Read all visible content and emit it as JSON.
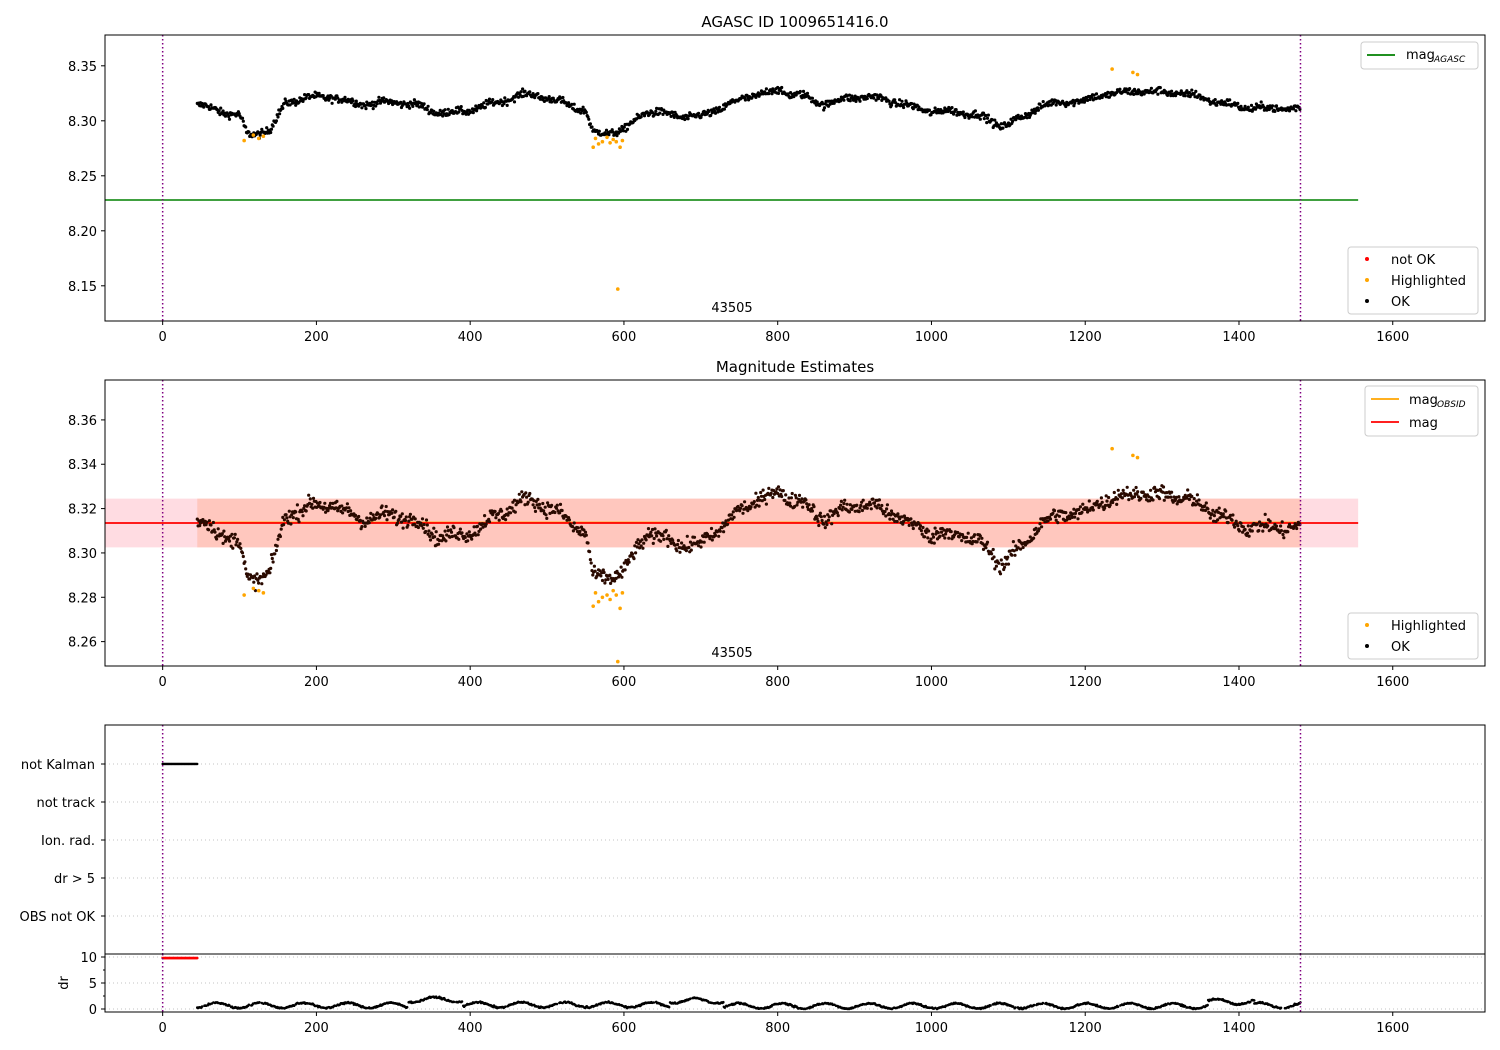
{
  "chart_data": [
    {
      "type": "scatter",
      "title": "AGASC ID 1009651416.0",
      "xlabel": "",
      "ylabel": "",
      "xlim": [
        -75,
        1720
      ],
      "ylim": [
        8.118,
        8.378
      ],
      "xticks": [
        0,
        200,
        400,
        600,
        800,
        1000,
        1200,
        1400,
        1600
      ],
      "yticks": [
        8.15,
        8.2,
        8.25,
        8.3,
        8.35
      ],
      "ytick_labels": [
        "8.15",
        "8.20",
        "8.25",
        "8.30",
        "8.35"
      ],
      "grid": false,
      "vlines": [
        0,
        1480
      ],
      "annotation": "43505",
      "hlines": [
        {
          "name": "mag_AGASC",
          "value": 8.228,
          "xmin": -75,
          "xmax": 1555,
          "color": "#008000"
        }
      ],
      "legend_upper": {
        "position": "upper right",
        "entries": [
          {
            "label_main": "mag",
            "label_sub": "AGASC",
            "color": "#008000",
            "marker": "line"
          }
        ]
      },
      "legend_lower": {
        "position": "lower right",
        "entries": [
          {
            "label": "not OK",
            "color": "#ff0000",
            "marker": "dot"
          },
          {
            "label": "Highlighted",
            "color": "#ffa500",
            "marker": "dot"
          },
          {
            "label": "OK",
            "color": "#000000",
            "marker": "dot"
          }
        ]
      },
      "series": [
        {
          "name": "OK",
          "color": "#000000",
          "kind": "band",
          "x_range": [
            45,
            1480
          ],
          "profile": [
            [
              45,
              8.312
            ],
            [
              100,
              8.307
            ],
            [
              110,
              8.29
            ],
            [
              140,
              8.292
            ],
            [
              160,
              8.315
            ],
            [
              220,
              8.322
            ],
            [
              260,
              8.318
            ],
            [
              300,
              8.316
            ],
            [
              360,
              8.307
            ],
            [
              420,
              8.315
            ],
            [
              480,
              8.322
            ],
            [
              520,
              8.318
            ],
            [
              550,
              8.312
            ],
            [
              560,
              8.29
            ],
            [
              600,
              8.289
            ],
            [
              630,
              8.307
            ],
            [
              700,
              8.306
            ],
            [
              740,
              8.314
            ],
            [
              800,
              8.328
            ],
            [
              830,
              8.326
            ],
            [
              860,
              8.316
            ],
            [
              920,
              8.32
            ],
            [
              960,
              8.318
            ],
            [
              1000,
              8.31
            ],
            [
              1060,
              8.303
            ],
            [
              1090,
              8.296
            ],
            [
              1120,
              8.306
            ],
            [
              1140,
              8.315
            ],
            [
              1200,
              8.316
            ],
            [
              1230,
              8.325
            ],
            [
              1270,
              8.33
            ],
            [
              1300,
              8.326
            ],
            [
              1360,
              8.318
            ],
            [
              1420,
              8.314
            ],
            [
              1480,
              8.308
            ]
          ],
          "spread": 0.0048
        },
        {
          "name": "Highlighted",
          "color": "#ffa500",
          "points": [
            [
              106,
              8.282
            ],
            [
              118,
              8.287
            ],
            [
              125,
              8.284
            ],
            [
              131,
              8.286
            ],
            [
              560,
              8.276
            ],
            [
              563,
              8.284
            ],
            [
              567,
              8.279
            ],
            [
              572,
              8.281
            ],
            [
              578,
              8.285
            ],
            [
              582,
              8.28
            ],
            [
              586,
              8.283
            ],
            [
              590,
              8.281
            ],
            [
              595,
              8.276
            ],
            [
              598,
              8.282
            ],
            [
              592,
              8.147
            ],
            [
              1235,
              8.347
            ],
            [
              1262,
              8.344
            ],
            [
              1268,
              8.342
            ]
          ]
        }
      ]
    },
    {
      "type": "scatter",
      "title": "Magnitude Estimates",
      "xlabel": "",
      "ylabel": "",
      "xlim": [
        -75,
        1720
      ],
      "ylim": [
        8.249,
        8.378
      ],
      "xticks": [
        0,
        200,
        400,
        600,
        800,
        1000,
        1200,
        1400,
        1600
      ],
      "yticks": [
        8.26,
        8.28,
        8.3,
        8.32,
        8.34,
        8.36
      ],
      "ytick_labels": [
        "8.26",
        "8.28",
        "8.30",
        "8.32",
        "8.34",
        "8.36"
      ],
      "grid": false,
      "vlines": [
        0,
        1480
      ],
      "annotation": "43505",
      "bands": [
        {
          "ymin": 8.3025,
          "ymax": 8.3245,
          "xmin": -75,
          "xmax": 1555,
          "color": "#ffc0cb",
          "opacity": 0.55
        },
        {
          "ymin": 8.3025,
          "ymax": 8.3245,
          "xmin": 45,
          "xmax": 1480,
          "color": "#ffa07a",
          "opacity": 0.35
        }
      ],
      "hlines": [
        {
          "name": "mag_OBSID",
          "value": 8.3137,
          "xmin": 45,
          "xmax": 1480,
          "color": "#ffa500"
        },
        {
          "name": "mag",
          "value": 8.3135,
          "xmin": -75,
          "xmax": 1555,
          "color": "#ff0000"
        }
      ],
      "legend_upper": {
        "position": "upper right",
        "entries": [
          {
            "label_main": "mag",
            "label_sub": "OBSID",
            "color": "#ffa500",
            "marker": "line"
          },
          {
            "label_main": "mag",
            "label_sub": "",
            "color": "#ff0000",
            "marker": "line"
          }
        ]
      },
      "legend_lower": {
        "position": "lower right",
        "entries": [
          {
            "label": "Highlighted",
            "color": "#ffa500",
            "marker": "dot"
          },
          {
            "label": "OK",
            "color": "#000000",
            "marker": "dot"
          }
        ]
      },
      "series": [
        {
          "name": "OK",
          "color": "#000000",
          "kind": "band",
          "x_range": [
            45,
            1480
          ],
          "profile": [
            [
              45,
              8.312
            ],
            [
              100,
              8.307
            ],
            [
              110,
              8.29
            ],
            [
              140,
              8.292
            ],
            [
              160,
              8.315
            ],
            [
              220,
              8.322
            ],
            [
              260,
              8.318
            ],
            [
              300,
              8.316
            ],
            [
              360,
              8.307
            ],
            [
              420,
              8.315
            ],
            [
              480,
              8.322
            ],
            [
              520,
              8.318
            ],
            [
              550,
              8.312
            ],
            [
              560,
              8.29
            ],
            [
              600,
              8.289
            ],
            [
              630,
              8.307
            ],
            [
              700,
              8.306
            ],
            [
              740,
              8.314
            ],
            [
              800,
              8.328
            ],
            [
              830,
              8.326
            ],
            [
              860,
              8.316
            ],
            [
              920,
              8.32
            ],
            [
              960,
              8.318
            ],
            [
              1000,
              8.31
            ],
            [
              1060,
              8.303
            ],
            [
              1090,
              8.296
            ],
            [
              1120,
              8.306
            ],
            [
              1140,
              8.315
            ],
            [
              1200,
              8.316
            ],
            [
              1230,
              8.325
            ],
            [
              1270,
              8.33
            ],
            [
              1300,
              8.326
            ],
            [
              1360,
              8.318
            ],
            [
              1420,
              8.314
            ],
            [
              1480,
              8.308
            ]
          ],
          "spread": 0.0048
        },
        {
          "name": "Highlighted",
          "color": "#ffa500",
          "points": [
            [
              106,
              8.281
            ],
            [
              118,
              8.284
            ],
            [
              125,
              8.283
            ],
            [
              131,
              8.282
            ],
            [
              560,
              8.276
            ],
            [
              563,
              8.282
            ],
            [
              567,
              8.278
            ],
            [
              572,
              8.28
            ],
            [
              578,
              8.281
            ],
            [
              582,
              8.279
            ],
            [
              586,
              8.283
            ],
            [
              590,
              8.281
            ],
            [
              595,
              8.275
            ],
            [
              598,
              8.282
            ],
            [
              592,
              8.251
            ],
            [
              1235,
              8.347
            ],
            [
              1262,
              8.344
            ],
            [
              1268,
              8.343
            ]
          ]
        }
      ]
    },
    {
      "type": "scatter",
      "title": "",
      "xlabel": "",
      "ylabel": "",
      "xlim": [
        -75,
        1720
      ],
      "xticks": [
        0,
        200,
        400,
        600,
        800,
        1000,
        1200,
        1400,
        1600
      ],
      "vlines": [
        0,
        1480
      ],
      "flag_rows": [
        "not Kalman",
        "not track",
        "Ion. rad.",
        "dr > 5",
        "OBS not OK"
      ],
      "grid": true,
      "series": [
        {
          "name": "not Kalman",
          "color": "#000000",
          "x_range": [
            0,
            45
          ]
        }
      ]
    },
    {
      "type": "scatter",
      "title": "",
      "xlabel": "",
      "ylabel": "dr",
      "xlim": [
        -75,
        1720
      ],
      "ylim": [
        -0.5,
        10.5
      ],
      "yticks": [
        0,
        5,
        10
      ],
      "ytick_labels": [
        "0",
        "5",
        "10"
      ],
      "grid": true,
      "vlines": [
        0,
        1480
      ],
      "series": [
        {
          "name": "dr clipped",
          "color": "#ff0000",
          "x_range": [
            0,
            45
          ],
          "value": 9.8
        },
        {
          "name": "dr",
          "color": "#000000",
          "x_range": [
            45,
            1480
          ],
          "segments": [
            [
              45,
              320,
              0.7
            ],
            [
              320,
              390,
              1.8
            ],
            [
              390,
              660,
              0.8
            ],
            [
              660,
              730,
              1.6
            ],
            [
              730,
              1040,
              0.6
            ],
            [
              1040,
              1360,
              0.6
            ],
            [
              1360,
              1420,
              1.4
            ],
            [
              1420,
              1480,
              0.7
            ]
          ]
        }
      ]
    }
  ]
}
